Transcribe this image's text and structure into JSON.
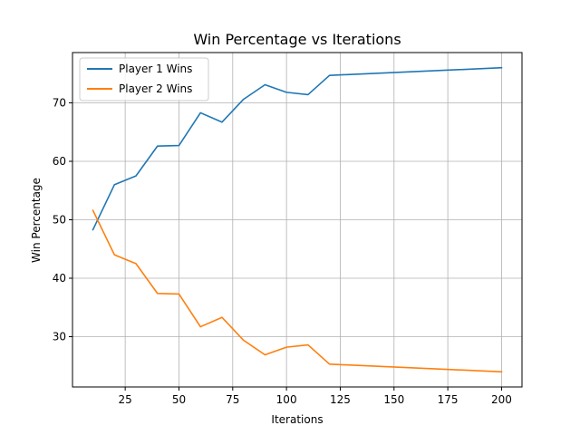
{
  "chart_data": {
    "type": "line",
    "title": "Win Percentage vs Iterations",
    "xlabel": "Iterations",
    "ylabel": "Win Percentage",
    "x": [
      10,
      20,
      30,
      40,
      50,
      60,
      70,
      80,
      90,
      100,
      110,
      120,
      200
    ],
    "series": [
      {
        "name": "Player 1 Wins",
        "color": "#1f77b4",
        "values": [
          48.3,
          56.0,
          57.5,
          62.6,
          62.7,
          68.3,
          66.7,
          70.6,
          73.1,
          71.8,
          71.4,
          74.7,
          76.0
        ]
      },
      {
        "name": "Player 2 Wins",
        "color": "#ff7f0e",
        "values": [
          51.6,
          44.0,
          42.5,
          37.4,
          37.3,
          31.7,
          33.3,
          29.4,
          26.9,
          28.2,
          28.6,
          25.3,
          24.0
        ]
      }
    ],
    "xlim": [
      0.5,
      209.5
    ],
    "ylim": [
      21.4,
      78.6
    ],
    "xticks": [
      25,
      50,
      75,
      100,
      125,
      150,
      175,
      200
    ],
    "xtick_labels": [
      "25",
      "50",
      "75",
      "100",
      "125",
      "150",
      "175",
      "200"
    ],
    "yticks": [
      30,
      40,
      50,
      60,
      70
    ],
    "ytick_labels": [
      "30",
      "40",
      "50",
      "60",
      "70"
    ],
    "grid": true,
    "legend_position": "upper-left"
  }
}
